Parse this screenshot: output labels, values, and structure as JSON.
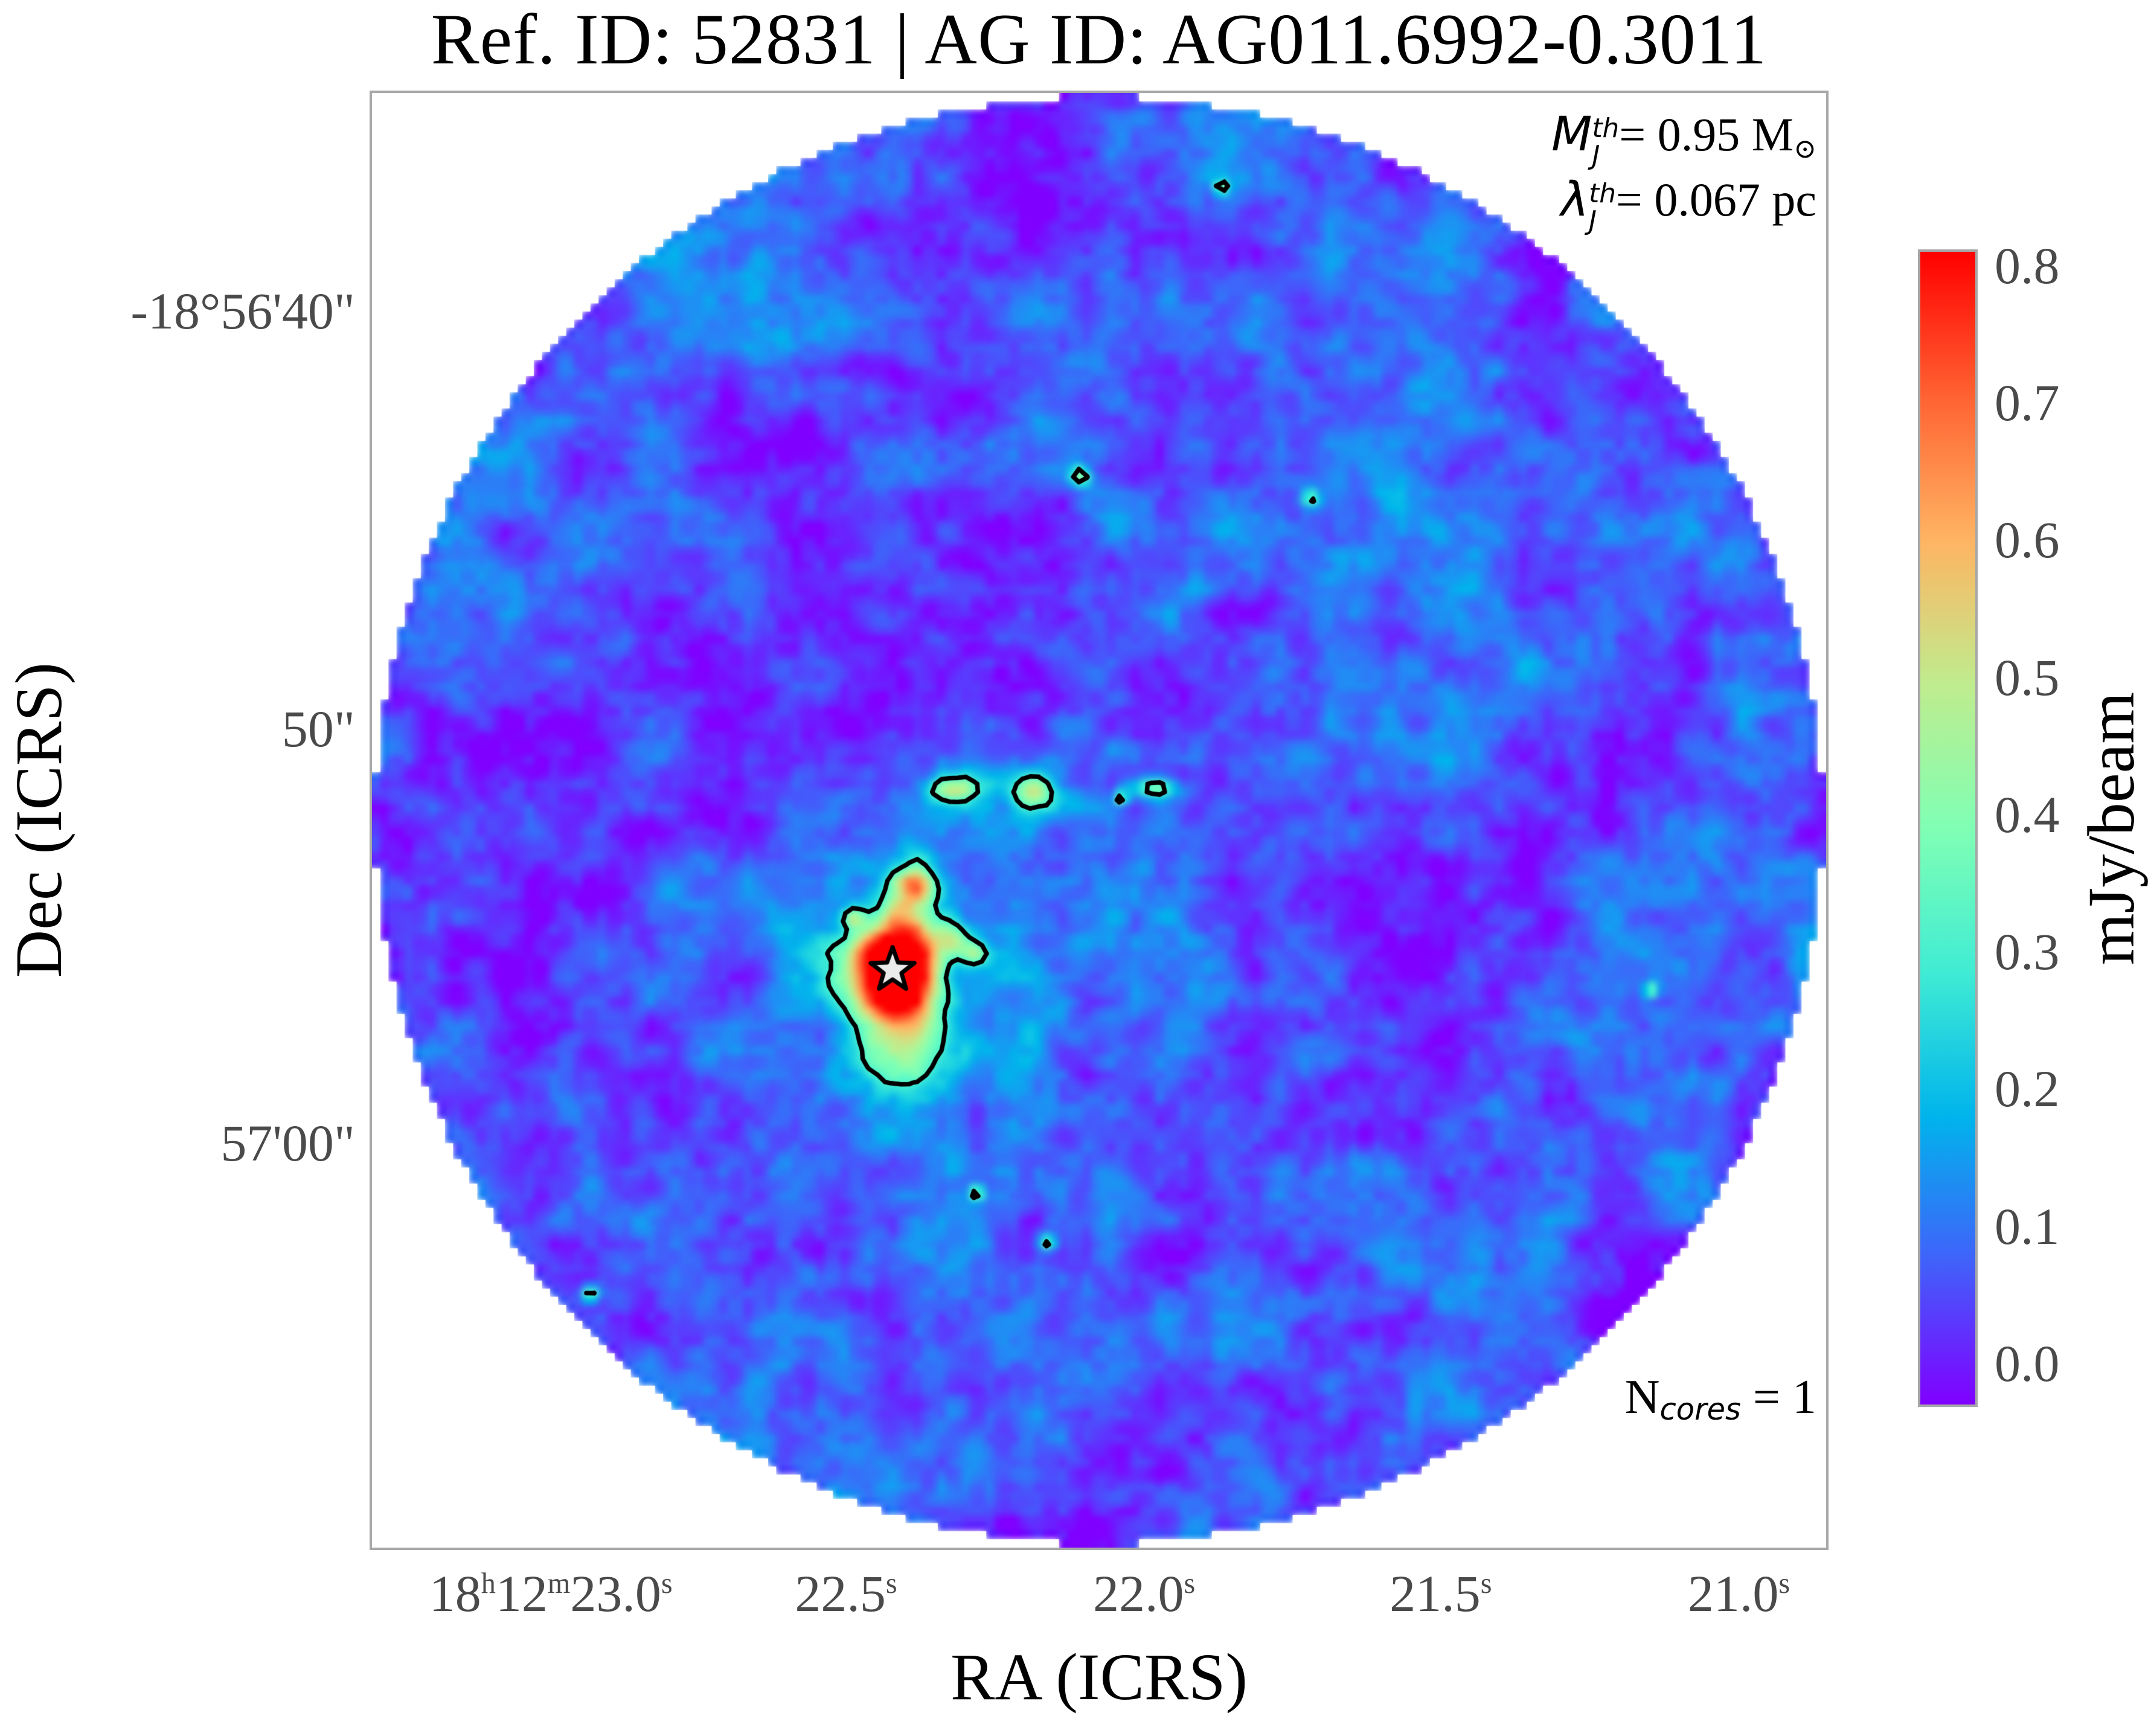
{
  "title": "Ref. ID: 52831 | AG ID: AG011.6992-0.3011",
  "axes": {
    "xlabel": "RA (ICRS)",
    "ylabel": "Dec (ICRS)"
  },
  "annotations": {
    "jeans_mass": {
      "symbol": "M",
      "sup": "th",
      "sub": "J",
      "value": "= 0.95 M",
      "solar_suffix": "⊙"
    },
    "jeans_length": {
      "symbol": "λ",
      "sup": "th",
      "sub": "J",
      "value": "= 0.067 pc"
    },
    "n_cores": {
      "symbol": "N",
      "sub": "cores",
      "value": " = 1"
    }
  },
  "chart_data": {
    "type": "heatmap",
    "title": "Ref. ID: 52831 | AG ID: AG011.6992-0.3011",
    "xlabel": "RA (ICRS)",
    "ylabel": "Dec (ICRS)",
    "x_ticks": [
      {
        "pos": 0.123,
        "segments": [
          "18",
          "h",
          "12",
          "m",
          "23.0",
          "s"
        ]
      },
      {
        "pos": 0.326,
        "segments": [
          "22.5",
          "s"
        ]
      },
      {
        "pos": 0.531,
        "segments": [
          "22.0",
          "s"
        ]
      },
      {
        "pos": 0.735,
        "segments": [
          "21.5",
          "s"
        ]
      },
      {
        "pos": 0.94,
        "segments": [
          "21.0",
          "s"
        ]
      }
    ],
    "y_ticks": [
      {
        "pos": 0.15,
        "label": "-18°56'40\""
      },
      {
        "pos": 0.437,
        "label": "50\""
      },
      {
        "pos": 0.722,
        "label": "57'00\""
      }
    ],
    "colorbar": {
      "label": "mJy/beam",
      "colormap": "rainbow",
      "vmin": -0.03,
      "vmax": 0.81,
      "ticks": [
        0.8,
        0.7,
        0.6,
        0.5,
        0.4,
        0.3,
        0.2,
        0.1,
        0.0
      ]
    },
    "map": {
      "shape": "circular field of view on white background",
      "background_rms_mJy": 0.07,
      "contour_level_mJy": 0.3,
      "core": {
        "x_frac": 0.358,
        "y_frac": 0.603,
        "peak_mJy": 0.8,
        "marker": "star"
      },
      "n_cores": 1
    },
    "annotation_texts": [
      "M_J^th = 0.95 M⊙",
      "λ_J^th = 0.067 pc",
      "N_cores = 1"
    ]
  }
}
